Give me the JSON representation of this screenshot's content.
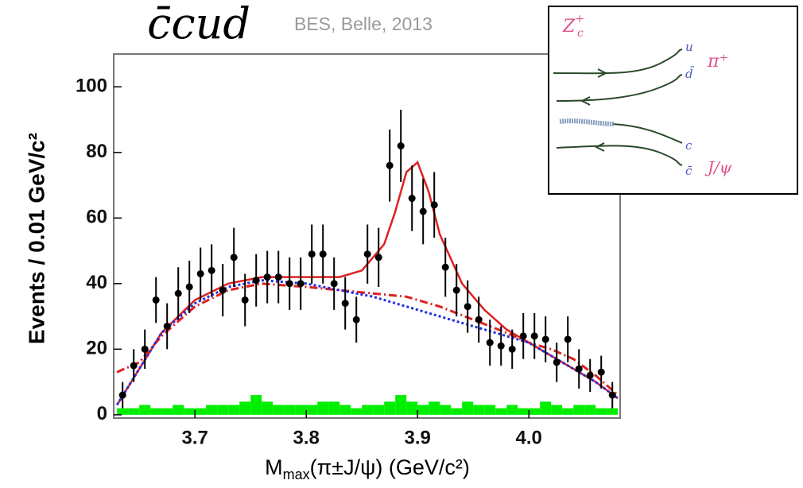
{
  "chart_data": {
    "type": "scatter",
    "title": "c̄cud",
    "subtitle": "BES, Belle, 2013",
    "y_label": "Events / 0.01 GeV/c²",
    "x_label": {
      "main": "M",
      "sub": "max",
      "rest": "(π±J/ψ) (GeV/c²)"
    },
    "xlim": [
      3.627,
      4.082
    ],
    "ylim": [
      -1,
      110
    ],
    "xticks": [
      3.7,
      3.8,
      3.9,
      {
        "value": 4,
        "label": "4.0"
      }
    ],
    "yticks": [
      0,
      20,
      40,
      60,
      80,
      100
    ],
    "series": [
      {
        "color": "#000000",
        "x": [
          3.635,
          3.645,
          3.655,
          3.665,
          3.675,
          3.685,
          3.695,
          3.705,
          3.715,
          3.725,
          3.735,
          3.745,
          3.755,
          3.765,
          3.775,
          3.785,
          3.795,
          3.805,
          3.815,
          3.825,
          3.835,
          3.845,
          3.855,
          3.865,
          3.875,
          3.885,
          3.895,
          3.905,
          3.915,
          3.925,
          3.935,
          3.945,
          3.955,
          3.965,
          3.975,
          3.985,
          3.995,
          4.005,
          4.015,
          4.025,
          4.035,
          4.045,
          4.055,
          4.065,
          4.075
        ],
        "values": [
          6,
          15,
          20,
          35,
          27,
          37,
          39,
          43,
          44,
          38,
          48,
          35,
          41,
          42,
          42,
          40,
          40,
          49,
          49,
          40,
          34,
          29,
          49,
          48,
          76,
          82,
          66,
          62,
          64,
          45,
          38,
          33,
          29,
          22,
          21,
          20,
          24,
          24,
          23,
          16,
          23,
          14,
          12,
          13,
          6
        ],
        "errors": [
          4,
          5,
          6,
          7,
          7,
          8,
          8,
          8,
          8,
          8,
          9,
          8,
          8,
          8,
          8,
          8,
          8,
          9,
          9,
          8,
          8,
          7,
          9,
          9,
          11,
          11,
          10,
          10,
          10,
          9,
          8,
          8,
          7,
          7,
          6,
          6,
          7,
          7,
          7,
          6,
          7,
          6,
          5,
          5,
          4
        ]
      }
    ],
    "fits": [
      {
        "color": "#e02020",
        "style": "solid",
        "x": [
          3.63,
          3.65,
          3.67,
          3.7,
          3.73,
          3.76,
          3.8,
          3.83,
          3.85,
          3.87,
          3.88,
          3.89,
          3.9,
          3.91,
          3.92,
          3.94,
          3.96,
          3.98,
          4.0,
          4.02,
          4.04,
          4.06,
          4.08
        ],
        "y": [
          3,
          14,
          25,
          35,
          40,
          42,
          42,
          42,
          44,
          52,
          62,
          74,
          77,
          68,
          55,
          40,
          32,
          26,
          22,
          18,
          14,
          10,
          5
        ]
      },
      {
        "color": "#e02020",
        "style": "dashdot",
        "x": [
          3.63,
          3.65,
          3.67,
          3.7,
          3.73,
          3.76,
          3.8,
          3.83,
          3.86,
          3.89,
          3.92,
          3.95,
          3.98,
          4.0,
          4.02,
          4.04,
          4.06,
          4.08
        ],
        "y": [
          13,
          16,
          24,
          33,
          38,
          40,
          39,
          38,
          37,
          36,
          33,
          29,
          25,
          22,
          20,
          17,
          12,
          6
        ]
      },
      {
        "color": "#2030e0",
        "style": "dotted",
        "x": [
          3.63,
          3.65,
          3.67,
          3.7,
          3.73,
          3.76,
          3.8,
          3.83,
          3.86,
          3.89,
          3.92,
          3.95,
          3.98,
          4.0,
          4.02,
          4.04,
          4.06,
          4.08
        ],
        "y": [
          3,
          14,
          25,
          34,
          39,
          41,
          40,
          38,
          36,
          33,
          30,
          27,
          24,
          22,
          18,
          14,
          10,
          5
        ]
      }
    ],
    "histogram": {
      "color": "#00ee00",
      "bins": [
        3.63,
        3.64,
        3.65,
        3.66,
        3.67,
        3.68,
        3.69,
        3.7,
        3.71,
        3.72,
        3.73,
        3.74,
        3.75,
        3.76,
        3.77,
        3.78,
        3.79,
        3.8,
        3.81,
        3.82,
        3.83,
        3.84,
        3.85,
        3.86,
        3.87,
        3.88,
        3.89,
        3.9,
        3.91,
        3.92,
        3.93,
        3.94,
        3.95,
        3.96,
        3.97,
        3.98,
        3.99,
        4.0,
        4.01,
        4.02,
        4.03,
        4.04,
        4.05,
        4.06,
        4.07,
        4.08
      ],
      "counts": [
        2,
        2,
        3,
        2,
        2,
        3,
        2,
        2,
        3,
        3,
        3,
        4,
        6,
        4,
        3,
        3,
        3,
        3,
        4,
        4,
        3,
        2,
        3,
        3,
        4,
        6,
        4,
        3,
        4,
        3,
        2,
        4,
        3,
        3,
        2,
        3,
        2,
        2,
        4,
        3,
        2,
        3,
        3,
        2,
        2
      ]
    }
  },
  "inset": {
    "particle": "Z",
    "particle_sub": "c",
    "particle_sup": "+",
    "q1": "u",
    "q2": "d̄",
    "meson1": "π⁺",
    "q3": "c",
    "q4": "c̄",
    "meson2": "J/ψ"
  }
}
